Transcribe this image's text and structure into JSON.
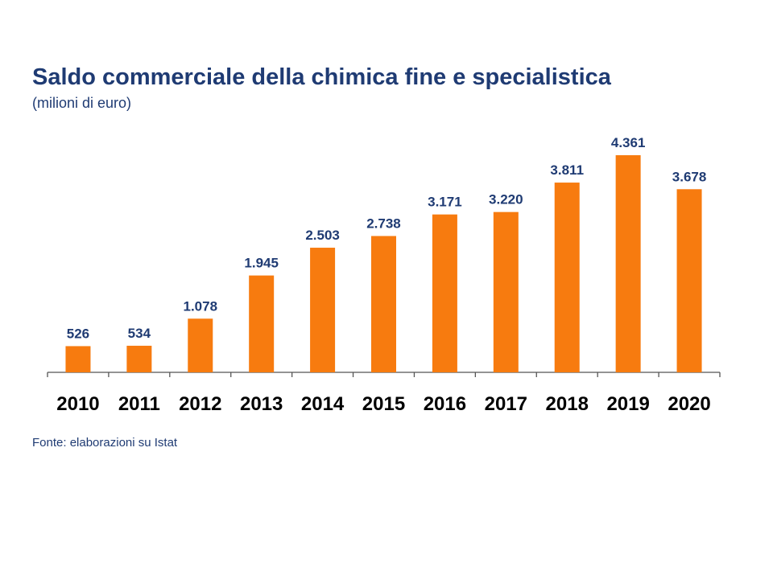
{
  "header": {
    "title": "Saldo commerciale della chimica fine e specialistica",
    "subtitle": "(milioni di euro)"
  },
  "footer": {
    "source": "Fonte: elaborazioni su Istat"
  },
  "colors": {
    "bar": "#f77b0f",
    "value_label": "#1f3b73",
    "category_label": "#000000",
    "axis": "#555555"
  },
  "chart_data": {
    "type": "bar",
    "title": "Saldo commerciale della chimica fine e specialistica",
    "subtitle": "(milioni di euro)",
    "categories": [
      "2010",
      "2011",
      "2012",
      "2013",
      "2014",
      "2015",
      "2016",
      "2017",
      "2018",
      "2019",
      "2020"
    ],
    "values": [
      526,
      534,
      1078,
      1945,
      2503,
      2738,
      3171,
      3220,
      3811,
      4361,
      3678
    ],
    "value_labels": [
      "526",
      "534",
      "1.078",
      "1.945",
      "2.503",
      "2.738",
      "3.171",
      "3.220",
      "3.811",
      "4.361",
      "3.678"
    ],
    "xlabel": "",
    "ylabel": "",
    "ylim": [
      0,
      4361
    ],
    "grid": false,
    "legend": "none"
  }
}
